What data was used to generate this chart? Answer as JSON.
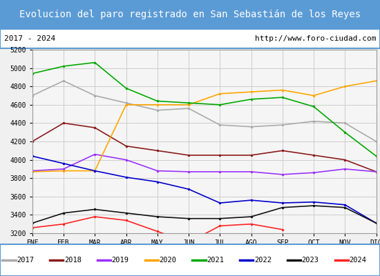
{
  "title": "Evolucion del paro registrado en San Sebastián de los Reyes",
  "title_bg": "#5b9bd5",
  "subtitle_left": "2017 - 2024",
  "subtitle_right": "http://www.foro-ciudad.com",
  "months": [
    "ENE",
    "FEB",
    "MAR",
    "ABR",
    "MAY",
    "JUN",
    "JUL",
    "AGO",
    "SEP",
    "OCT",
    "NOV",
    "DIC"
  ],
  "ylim": [
    3200,
    5200
  ],
  "yticks": [
    3200,
    3400,
    3600,
    3800,
    4000,
    4200,
    4400,
    4600,
    4800,
    5000,
    5200
  ],
  "series": {
    "2017": {
      "color": "#aaaaaa",
      "data": [
        4700,
        4860,
        4700,
        4620,
        4540,
        4560,
        4380,
        4360,
        4380,
        4420,
        4400,
        4200
      ]
    },
    "2018": {
      "color": "#8b1a1a",
      "data": [
        4200,
        4400,
        4350,
        4150,
        4100,
        4050,
        4050,
        4050,
        4100,
        4050,
        4000,
        3870
      ]
    },
    "2019": {
      "color": "#9b30ff",
      "data": [
        3880,
        3900,
        4060,
        4000,
        3880,
        3870,
        3870,
        3870,
        3840,
        3860,
        3900,
        3870
      ]
    },
    "2020": {
      "color": "#ffa500",
      "data": [
        3870,
        3880,
        3880,
        4600,
        4600,
        4600,
        4720,
        4740,
        4760,
        4700,
        4800,
        4860
      ]
    },
    "2021": {
      "color": "#00aa00",
      "data": [
        4940,
        5020,
        5060,
        4780,
        4640,
        4620,
        4600,
        4660,
        4680,
        4580,
        4300,
        4040
      ]
    },
    "2022": {
      "color": "#0000cc",
      "data": [
        4040,
        3960,
        3880,
        3810,
        3760,
        3680,
        3530,
        3560,
        3530,
        3540,
        3510,
        3310
      ]
    },
    "2023": {
      "color": "#111111",
      "data": [
        3310,
        3420,
        3460,
        3420,
        3380,
        3360,
        3360,
        3380,
        3480,
        3500,
        3480,
        3310
      ]
    },
    "2024": {
      "color": "#ff2222",
      "data": [
        3260,
        3300,
        3380,
        3340,
        3220,
        3100,
        3280,
        3300,
        3240,
        null,
        null,
        null
      ]
    }
  },
  "bg_color": "#f0f0f0",
  "plot_bg": "#f5f5f5",
  "grid_color": "#cccccc",
  "border_color": "#5b9bd5"
}
